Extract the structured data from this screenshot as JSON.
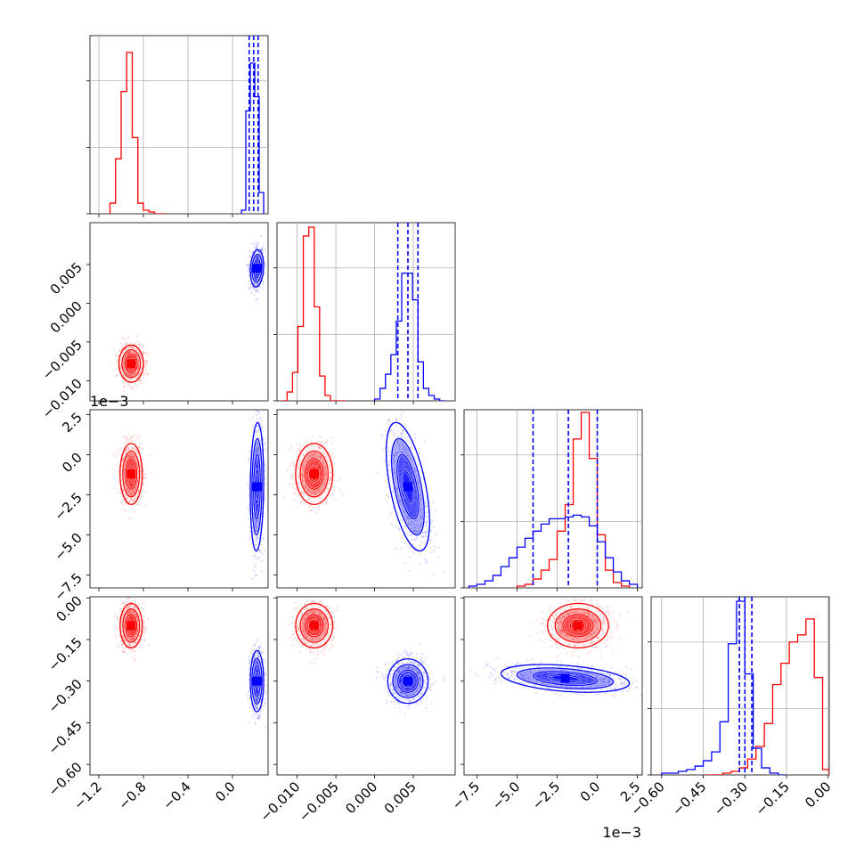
{
  "chart_data": {
    "type": "corner",
    "title": "",
    "series_colors": [
      "#ff0000",
      "#0000ff"
    ],
    "parameters": [
      {
        "range": [
          -1.28,
          0.32
        ],
        "ticks": [
          -1.2,
          -0.8,
          -0.4,
          0.0
        ],
        "tick_labels": [
          "−1.2",
          "−0.8",
          "−0.4",
          "0.0"
        ],
        "offset_text": ""
      },
      {
        "range": [
          -0.0126,
          0.0104
        ],
        "ticks": [
          -0.01,
          -0.005,
          0.0,
          0.005
        ],
        "tick_labels": [
          "−0.010",
          "−0.005",
          "0.000",
          "0.005"
        ],
        "offset_text": ""
      },
      {
        "range": [
          -8.3,
          2.8
        ],
        "ticks": [
          -7.5,
          -5.0,
          -2.5,
          0.0,
          2.5
        ],
        "tick_labels": [
          "−7.5",
          "−5.0",
          "−2.5",
          "0.0",
          "2.5"
        ],
        "offset_text": "1e−3"
      },
      {
        "range": [
          -0.638,
          0.004
        ],
        "ticks": [
          -0.6,
          -0.45,
          -0.3,
          -0.15,
          0.0
        ],
        "tick_labels": [
          "−0.60",
          "−0.45",
          "−0.30",
          "−0.15",
          "0.00"
        ],
        "offset_text": ""
      }
    ],
    "histograms": [
      {
        "param": 0,
        "ymax": 1.0,
        "quantiles_blue": [
          0.15,
          0.19,
          0.23
        ],
        "series": [
          {
            "name": "",
            "color": "#ff0000",
            "edges": [
              -1.1,
              -1.05,
              -1.0,
              -0.95,
              -0.9,
              -0.85,
              -0.8,
              -0.75,
              -0.7,
              -0.65,
              -0.6
            ],
            "counts": [
              0.06,
              0.31,
              0.69,
              0.91,
              0.43,
              0.06,
              0.02,
              0.01,
              0.0,
              0.0
            ]
          },
          {
            "name": "",
            "color": "#0000ff",
            "edges": [
              0.08,
              0.12,
              0.16,
              0.2,
              0.24,
              0.28
            ],
            "counts": [
              0.02,
              0.58,
              0.85,
              0.66,
              0.12
            ]
          }
        ]
      },
      {
        "param": 1,
        "ymax": 1.0,
        "quantiles_blue": [
          0.003,
          0.0043,
          0.0056
        ],
        "series": [
          {
            "name": "",
            "color": "#ff0000",
            "edges": [
              -0.012,
              -0.0113,
              -0.0106,
              -0.0099,
              -0.0092,
              -0.0085,
              -0.0078,
              -0.0071,
              -0.0064,
              -0.0057,
              -0.005,
              -0.0043,
              -0.0036
            ],
            "counts": [
              0.0,
              0.05,
              0.16,
              0.42,
              0.93,
              0.98,
              0.53,
              0.14,
              0.03,
              0.0,
              0.0,
              0.0
            ]
          },
          {
            "name": "",
            "color": "#0000ff",
            "edges": [
              0.0,
              0.0007,
              0.0014,
              0.0021,
              0.0028,
              0.0035,
              0.0042,
              0.0049,
              0.0056,
              0.0063,
              0.007,
              0.0077,
              0.0084,
              0.0091
            ],
            "counts": [
              0.01,
              0.07,
              0.15,
              0.26,
              0.45,
              0.72,
              0.72,
              0.57,
              0.22,
              0.07,
              0.03,
              0.01,
              0.0
            ]
          }
        ]
      },
      {
        "param": 2,
        "ymax": 1.0,
        "quantiles_blue": [
          -4.0,
          -1.8,
          0.0
        ],
        "series": [
          {
            "name": "",
            "color": "#ff0000",
            "edges": [
              -5.0,
              -4.5,
              -4.0,
              -3.5,
              -3.0,
              -2.5,
              -2.0,
              -1.5,
              -1.0,
              -0.5,
              0.0,
              0.5,
              1.0,
              1.5,
              2.0
            ],
            "counts": [
              0.01,
              0.02,
              0.05,
              0.1,
              0.16,
              0.32,
              0.47,
              0.84,
              0.99,
              0.73,
              0.3,
              0.1,
              0.03,
              0.01
            ]
          },
          {
            "name": "",
            "color": "#0000ff",
            "edges": [
              -8.0,
              -7.5,
              -7.0,
              -6.5,
              -6.0,
              -5.5,
              -5.0,
              -4.5,
              -4.0,
              -3.5,
              -3.0,
              -2.5,
              -2.0,
              -1.5,
              -1.0,
              -0.5,
              0.0,
              0.5,
              1.0,
              1.5,
              2.0,
              2.5
            ],
            "counts": [
              0.01,
              0.02,
              0.04,
              0.07,
              0.12,
              0.17,
              0.23,
              0.28,
              0.32,
              0.36,
              0.39,
              0.39,
              0.4,
              0.41,
              0.4,
              0.35,
              0.26,
              0.17,
              0.09,
              0.04,
              0.02
            ]
          }
        ]
      },
      {
        "param": 3,
        "ymax": 1.0,
        "quantiles_blue": [
          -0.32,
          -0.3,
          -0.275
        ],
        "series": [
          {
            "name": "",
            "color": "#ff0000",
            "edges": [
              -0.44,
              -0.41,
              -0.38,
              -0.35,
              -0.32,
              -0.29,
              -0.26,
              -0.23,
              -0.2,
              -0.17,
              -0.14,
              -0.11,
              -0.08,
              -0.05,
              -0.02,
              0.004
            ],
            "counts": [
              0.0,
              0.0,
              0.01,
              0.02,
              0.04,
              0.09,
              0.16,
              0.29,
              0.51,
              0.63,
              0.75,
              0.79,
              0.88,
              0.55,
              0.03
            ]
          },
          {
            "name": "",
            "color": "#0000ff",
            "edges": [
              -0.6,
              -0.57,
              -0.54,
              -0.51,
              -0.48,
              -0.45,
              -0.42,
              -0.39,
              -0.36,
              -0.33,
              -0.3,
              -0.27,
              -0.24,
              -0.21,
              -0.18,
              -0.15
            ],
            "counts": [
              0.01,
              0.01,
              0.02,
              0.03,
              0.05,
              0.08,
              0.13,
              0.3,
              0.74,
              0.98,
              0.57,
              0.15,
              0.04,
              0.01,
              0.0
            ]
          }
        ]
      }
    ],
    "scatter_2d": [
      {
        "x_param": 0,
        "y_param": 1,
        "blobs": [
          {
            "color": "#ff0000",
            "mx": -0.91,
            "my": -0.0078,
            "sx": 0.055,
            "sy": 0.0012,
            "rho": 0.0
          },
          {
            "color": "#0000ff",
            "mx": 0.22,
            "my": 0.0045,
            "sx": 0.03,
            "sy": 0.0012,
            "rho": 0.15
          }
        ]
      },
      {
        "x_param": 0,
        "y_param": 2,
        "blobs": [
          {
            "color": "#ff0000",
            "mx": -0.91,
            "my": -1.2,
            "sx": 0.05,
            "sy": 0.95,
            "rho": 0.0
          },
          {
            "color": "#0000ff",
            "mx": 0.22,
            "my": -2.0,
            "sx": 0.03,
            "sy": 2.0,
            "rho": 0.1
          }
        ]
      },
      {
        "x_param": 1,
        "y_param": 2,
        "blobs": [
          {
            "color": "#ff0000",
            "mx": -0.0078,
            "my": -1.2,
            "sx": 0.0012,
            "sy": 0.95,
            "rho": 0.0
          },
          {
            "color": "#0000ff",
            "mx": 0.0043,
            "my": -2.0,
            "sx": 0.0014,
            "sy": 2.0,
            "rho": -0.55
          }
        ]
      },
      {
        "x_param": 0,
        "y_param": 3,
        "blobs": [
          {
            "color": "#ff0000",
            "mx": -0.91,
            "my": -0.1,
            "sx": 0.05,
            "sy": 0.04,
            "rho": 0.0
          },
          {
            "color": "#0000ff",
            "mx": 0.22,
            "my": -0.3,
            "sx": 0.03,
            "sy": 0.055,
            "rho": 0.0
          }
        ]
      },
      {
        "x_param": 1,
        "y_param": 3,
        "blobs": [
          {
            "color": "#ff0000",
            "mx": -0.0078,
            "my": -0.1,
            "sx": 0.0012,
            "sy": 0.04,
            "rho": 0.0
          },
          {
            "color": "#0000ff",
            "mx": 0.0043,
            "my": -0.3,
            "sx": 0.0013,
            "sy": 0.04,
            "rho": 0.0
          }
        ]
      },
      {
        "x_param": 2,
        "y_param": 3,
        "blobs": [
          {
            "color": "#ff0000",
            "mx": -1.2,
            "my": -0.1,
            "sx": 0.95,
            "sy": 0.04,
            "rho": 0.0
          },
          {
            "color": "#0000ff",
            "mx": -2.0,
            "my": -0.29,
            "sx": 2.0,
            "sy": 0.025,
            "rho": -0.35
          }
        ]
      }
    ]
  }
}
